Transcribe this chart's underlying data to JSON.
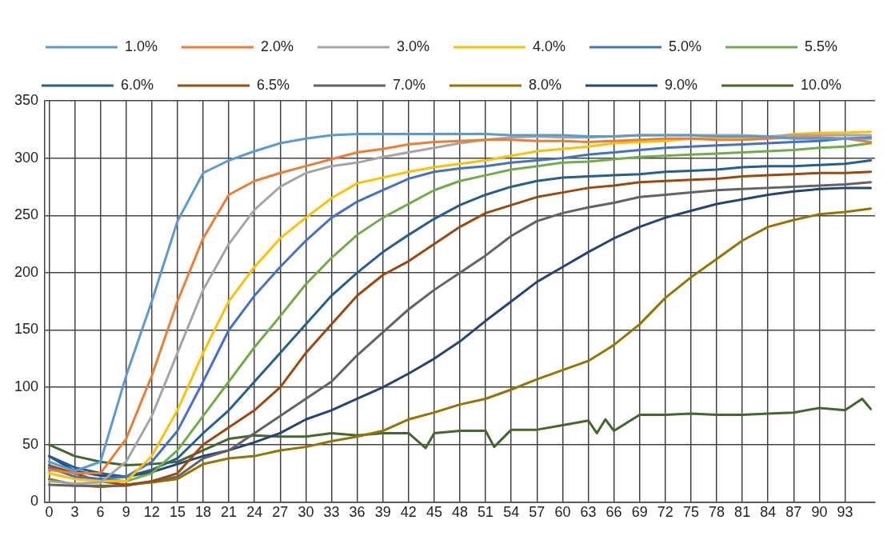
{
  "chart_data": {
    "type": "line",
    "x": [
      0,
      3,
      6,
      9,
      12,
      15,
      18,
      21,
      24,
      27,
      30,
      33,
      36,
      39,
      42,
      45,
      48,
      51,
      54,
      57,
      60,
      63,
      66,
      69,
      72,
      75,
      78,
      81,
      84,
      87,
      90,
      93,
      96
    ],
    "xlim": [
      -0.5,
      96.5
    ],
    "xticks": [
      0,
      3,
      6,
      9,
      12,
      15,
      18,
      21,
      24,
      27,
      30,
      33,
      36,
      39,
      42,
      45,
      48,
      51,
      54,
      57,
      60,
      63,
      66,
      69,
      72,
      75,
      78,
      81,
      84,
      87,
      90,
      93
    ],
    "ylim": [
      0,
      350
    ],
    "yticks": [
      0,
      50,
      100,
      150,
      200,
      250,
      300,
      350
    ],
    "grid": true,
    "legend": "top",
    "marker": "none",
    "line_style": "solid",
    "series": [
      {
        "name": "1.0%",
        "color": "#5b9bd5",
        "values": [
          35,
          27,
          35,
          110,
          175,
          245,
          287,
          298,
          306,
          313,
          317,
          320,
          321,
          321,
          321,
          321,
          321,
          321,
          320,
          320,
          320,
          319,
          319,
          320,
          320,
          320,
          319,
          319,
          319,
          317,
          317,
          317,
          317
        ]
      },
      {
        "name": "2.0%",
        "color": "#ed7d31",
        "values": [
          28,
          25,
          25,
          55,
          110,
          175,
          230,
          268,
          280,
          287,
          293,
          299,
          305,
          308,
          312,
          314,
          315,
          316,
          316,
          315,
          315,
          314,
          315,
          316,
          317,
          317,
          316,
          316,
          317,
          318,
          318,
          317,
          314
        ]
      },
      {
        "name": "3.0%",
        "color": "#a5a5a5",
        "values": [
          18,
          16,
          17,
          35,
          75,
          130,
          185,
          225,
          255,
          275,
          287,
          293,
          296,
          301,
          305,
          309,
          313,
          316,
          318,
          319,
          318,
          318,
          319,
          320,
          320,
          320,
          320,
          320,
          319,
          320,
          320,
          320,
          320
        ]
      },
      {
        "name": "4.0%",
        "color": "#ffc000",
        "values": [
          25,
          20,
          18,
          18,
          40,
          80,
          130,
          175,
          205,
          230,
          248,
          265,
          278,
          283,
          288,
          292,
          295,
          298,
          302,
          306,
          308,
          310,
          313,
          314,
          315,
          317,
          318,
          318,
          318,
          321,
          322,
          322,
          323
        ]
      },
      {
        "name": "5.0%",
        "color": "#4472c4",
        "values": [
          30,
          22,
          20,
          22,
          35,
          62,
          105,
          150,
          180,
          205,
          228,
          248,
          262,
          272,
          282,
          288,
          291,
          293,
          296,
          298,
          300,
          303,
          305,
          307,
          309,
          310,
          311,
          312,
          313,
          314,
          315,
          317,
          318
        ]
      },
      {
        "name": "5.5%",
        "color": "#70ad47",
        "values": [
          30,
          22,
          20,
          18,
          25,
          45,
          75,
          105,
          135,
          162,
          190,
          213,
          233,
          248,
          260,
          272,
          280,
          285,
          290,
          293,
          296,
          297,
          299,
          301,
          302,
          303,
          304,
          305,
          306,
          307,
          309,
          310,
          313
        ]
      },
      {
        "name": "6.0%",
        "color": "#255e91",
        "values": [
          40,
          30,
          25,
          22,
          28,
          38,
          60,
          80,
          105,
          130,
          155,
          180,
          200,
          218,
          233,
          247,
          259,
          268,
          275,
          280,
          283,
          284,
          285,
          286,
          288,
          289,
          290,
          292,
          293,
          293,
          294,
          295,
          298
        ]
      },
      {
        "name": "6.5%",
        "color": "#9e480e",
        "values": [
          32,
          25,
          18,
          15,
          18,
          25,
          50,
          65,
          80,
          100,
          130,
          155,
          180,
          198,
          210,
          225,
          240,
          252,
          259,
          266,
          270,
          274,
          276,
          279,
          280,
          281,
          282,
          284,
          285,
          286,
          287,
          287,
          288
        ]
      },
      {
        "name": "7.0%",
        "color": "#636363",
        "values": [
          15,
          14,
          14,
          14,
          18,
          22,
          38,
          45,
          60,
          75,
          90,
          105,
          128,
          148,
          168,
          185,
          200,
          215,
          232,
          245,
          252,
          257,
          261,
          266,
          268,
          270,
          272,
          273,
          274,
          275,
          276,
          277,
          279
        ]
      },
      {
        "name": "8.0%",
        "color": "#997300",
        "values": [
          20,
          15,
          13,
          15,
          17,
          20,
          33,
          38,
          40,
          45,
          48,
          53,
          57,
          62,
          72,
          78,
          85,
          90,
          98,
          107,
          115,
          123,
          137,
          155,
          178,
          196,
          212,
          228,
          240,
          246,
          251,
          253,
          256
        ]
      },
      {
        "name": "9.0%",
        "color": "#264478",
        "values": [
          40,
          27,
          23,
          22,
          26,
          33,
          40,
          45,
          52,
          60,
          72,
          80,
          90,
          100,
          112,
          125,
          140,
          158,
          175,
          192,
          205,
          218,
          230,
          240,
          248,
          254,
          260,
          264,
          268,
          271,
          273,
          274,
          274
        ]
      },
      {
        "name": "10.0%",
        "color": "#43682b",
        "x": [
          0,
          3,
          6,
          9,
          12,
          15,
          18,
          21,
          24,
          27,
          30,
          33,
          36,
          39,
          42,
          44,
          45,
          48,
          51,
          52,
          54,
          57,
          60,
          63,
          64,
          65,
          66,
          69,
          72,
          75,
          78,
          81,
          84,
          87,
          90,
          93,
          95,
          96
        ],
        "values": [
          50,
          40,
          35,
          32,
          33,
          35,
          45,
          55,
          58,
          57,
          57,
          60,
          58,
          60,
          60,
          47,
          60,
          62,
          62,
          48,
          63,
          63,
          67,
          71,
          60,
          72,
          62,
          76,
          76,
          77,
          76,
          76,
          77,
          78,
          82,
          80,
          90,
          81
        ]
      }
    ]
  }
}
